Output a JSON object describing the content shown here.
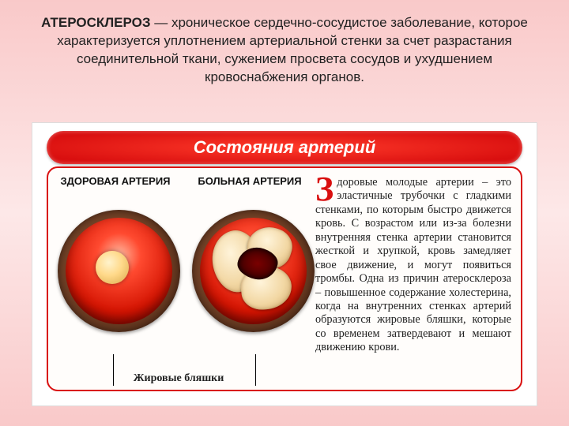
{
  "intro": {
    "term": "АТЕРОСКЛЕРОЗ",
    "rest": " — хроническое сердечно-сосудистое заболевание, которое характеризуется уплотнением артериальной стенки за счет разрастания соединительной ткани, сужением просвета сосудов и ухудшением кровоснабжения органов."
  },
  "figure": {
    "banner": "Состояния артерий",
    "label_healthy": "ЗДОРОВАЯ АРТЕРИЯ",
    "label_sick": "БОЛЬНАЯ АРТЕРИЯ",
    "caption": "Жировые бляшки",
    "side_dropcap": "З",
    "side_text": "доровые молодые артерии – это эластичные трубочки с гладкими стенками, по которым быстро дви­жется кровь. С возрастом или из-за болезни внутренняя стенка артерии становится жесткой и хрупкой, кровь замедляет свое движение, и могут по­явиться тромбы. Одна из при­чин атеросклероза – повы­шенное содержание холесте­рина, когда на внутренних стен­ках артерий образуются жировые бляшки, которые со временем затверде­вают и мешают движению крови."
  },
  "colors": {
    "bg_top": "#f9c9c9",
    "banner_red": "#d90f0f",
    "artery_outer": "#6d3e24",
    "lumen_red": "#d41402",
    "plaque": "#f2d7a3"
  }
}
